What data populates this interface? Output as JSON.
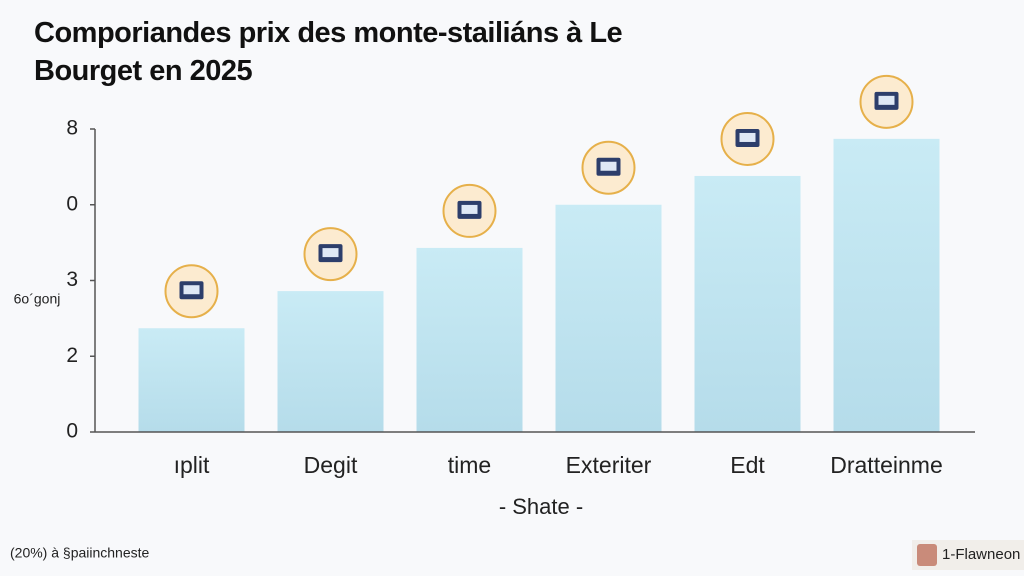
{
  "chart_data": {
    "type": "bar",
    "title": "Comporiandes prix des monte-stailiáns à Le Bourget en 2025",
    "y_label": "6o´gonj",
    "x_label": "- Shate -",
    "categories": [
      "ıplit",
      "Degit",
      "time",
      "Exteriter",
      "Edt",
      "Dratteinme"
    ],
    "values": [
      1.37,
      1.86,
      2.43,
      3.0,
      3.38,
      3.87
    ],
    "color": "#c3e7f2",
    "ylim": [
      0,
      4
    ],
    "yticks": [
      0,
      {
        "value": 1,
        "label": "2"
      },
      {
        "value": 2,
        "label": "3"
      },
      {
        "value": 3,
        "label": "0"
      },
      {
        "value": 4,
        "label": "8"
      }
    ],
    "grid": false,
    "footnote": "(20%) à §paiinchneste",
    "brand": "1-Flawneon"
  }
}
